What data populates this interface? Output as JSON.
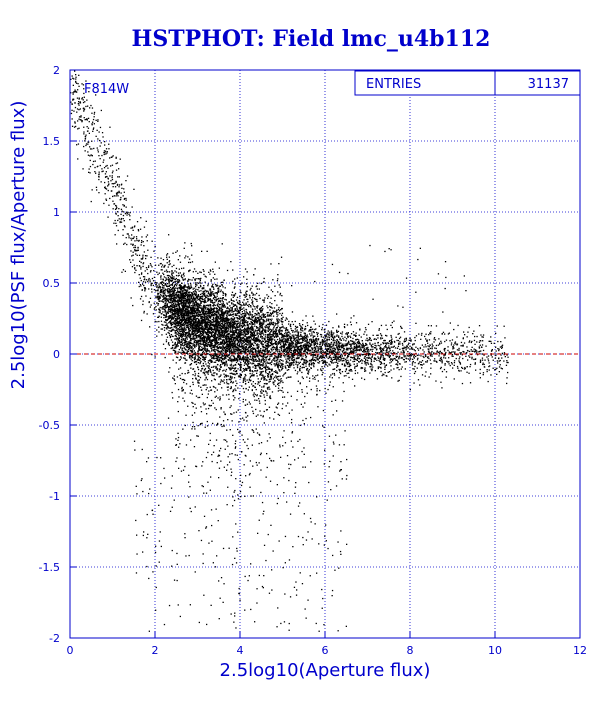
{
  "chart_data": {
    "type": "scatter",
    "title": "HSTPHOT: Field lmc_u4b112",
    "xlabel": "2.5log10(Aperture flux)",
    "ylabel": "2.5log10(PSF flux/Aperture flux)",
    "xlim": [
      0,
      12
    ],
    "ylim": [
      -2,
      2
    ],
    "x_ticks": [
      "0",
      "2",
      "4",
      "6",
      "8",
      "10",
      "12"
    ],
    "y_ticks": [
      "2",
      "1.5",
      "1",
      "0.5",
      "0",
      "-0.5",
      "-1",
      "-1.5",
      "-2"
    ],
    "grid": true,
    "annotation": "F814W",
    "stats_box": {
      "label": "ENTRIES",
      "value": "31137"
    },
    "reference_line": {
      "y": 0,
      "style": "dashed",
      "color": "#cc0000"
    },
    "series": [
      {
        "points": [
          [
            0.1,
            1.85
          ],
          [
            0.2,
            1.8
          ],
          [
            0.3,
            1.9
          ],
          [
            0.4,
            1.75
          ],
          [
            0.5,
            1.7
          ],
          [
            0.6,
            1.65
          ],
          [
            0.7,
            1.6
          ],
          [
            0.8,
            1.5
          ],
          [
            0.9,
            1.45
          ],
          [
            1.0,
            1.4
          ],
          [
            1.1,
            1.35
          ],
          [
            1.2,
            1.2
          ],
          [
            1.3,
            1.1
          ],
          [
            1.4,
            1.0
          ],
          [
            1.5,
            0.9
          ],
          [
            1.6,
            0.8
          ],
          [
            1.7,
            0.7
          ],
          [
            1.8,
            0.6
          ],
          [
            1.9,
            0.5
          ],
          [
            2.0,
            0.45
          ],
          [
            2.2,
            0.4
          ],
          [
            2.5,
            0.3
          ],
          [
            3.0,
            0.2
          ],
          [
            3.5,
            0.15
          ],
          [
            4.0,
            0.1
          ],
          [
            4.5,
            0.08
          ],
          [
            5.0,
            0.05
          ],
          [
            5.5,
            0.03
          ],
          [
            6.0,
            0.02
          ],
          [
            6.5,
            0.01
          ],
          [
            7.0,
            0.0
          ],
          [
            7.5,
            -0.02
          ],
          [
            8.0,
            -0.03
          ],
          [
            8.5,
            0.0
          ],
          [
            9.0,
            0.02
          ],
          [
            9.5,
            0.1
          ],
          [
            10.0,
            0.15
          ],
          [
            10.2,
            0.2
          ],
          [
            3.0,
            -0.5
          ],
          [
            3.5,
            -0.8
          ],
          [
            4.0,
            -1.0
          ],
          [
            2.5,
            -1.4
          ],
          [
            2.0,
            -1.8
          ],
          [
            3.2,
            -1.9
          ],
          [
            5.0,
            -1.5
          ],
          [
            6.0,
            -1.2
          ]
        ]
      }
    ]
  },
  "colors": {
    "axis": "#0000cc",
    "title": "#0000cc",
    "points": "#000000",
    "reference": "#cc0000"
  }
}
